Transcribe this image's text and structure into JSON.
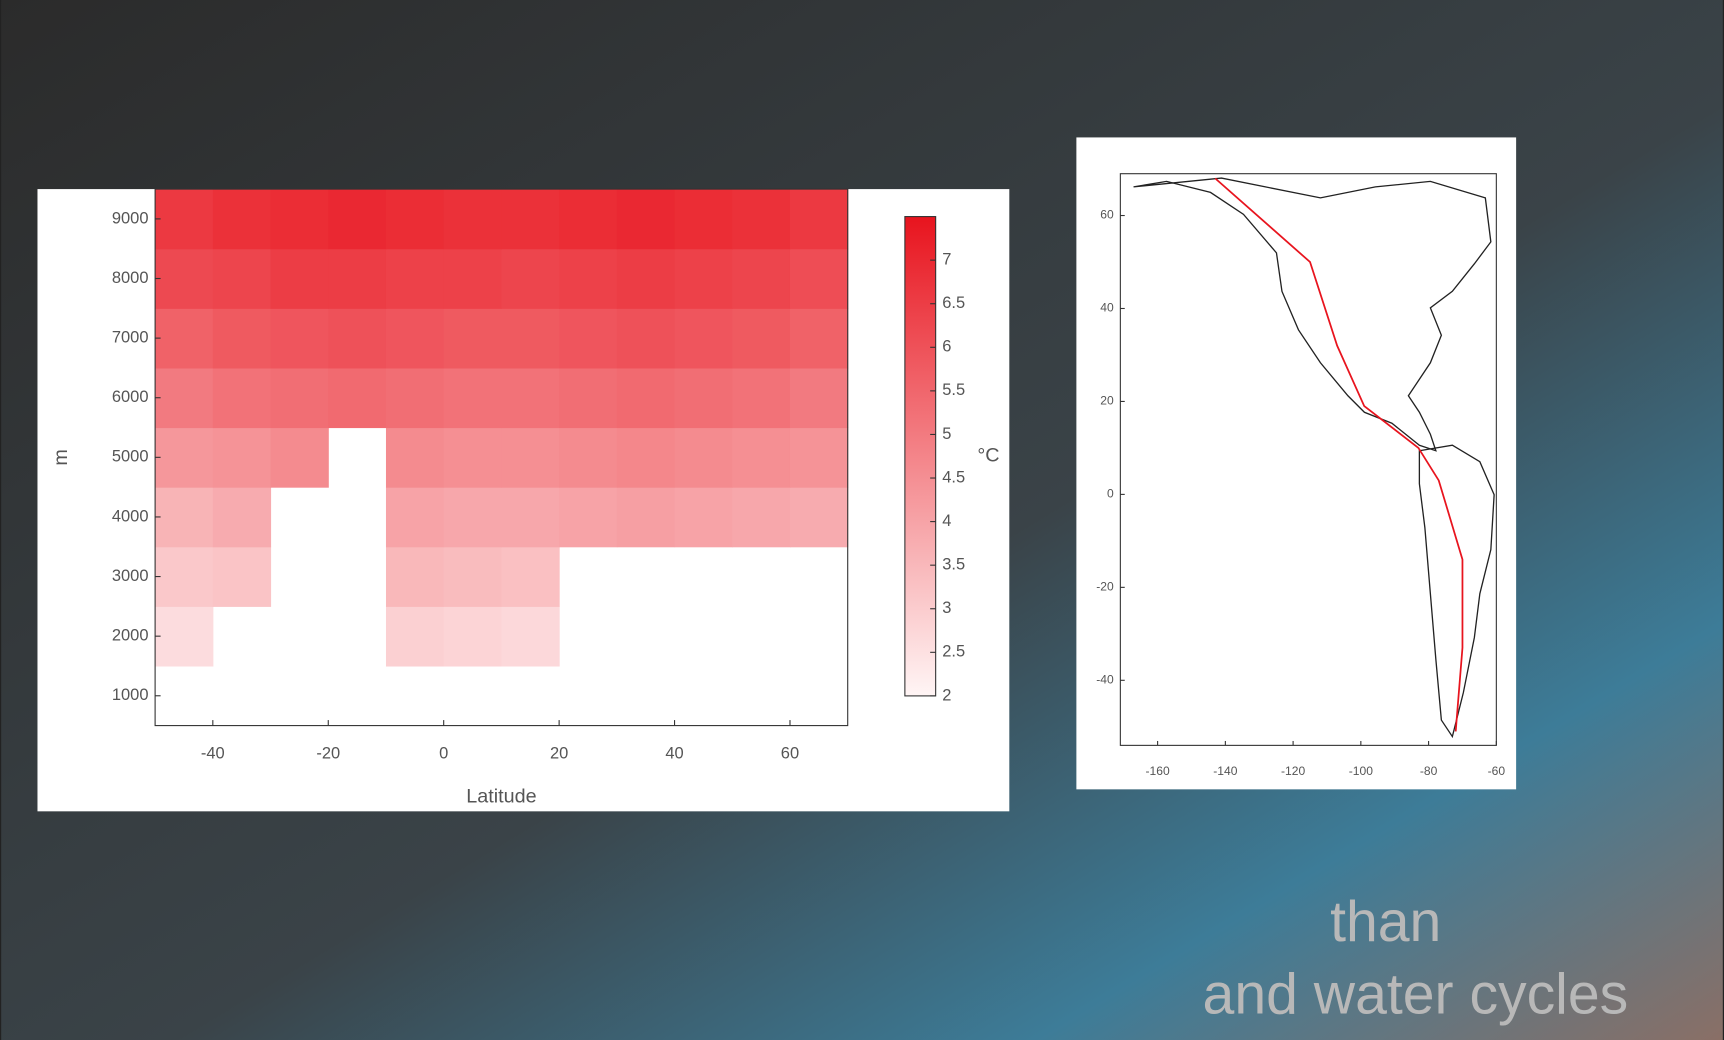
{
  "slide_text": [
    "than",
    "and water cycles"
  ],
  "chart_data": [
    {
      "type": "heatmap",
      "x_label": "Latitude",
      "y_label": "m",
      "xbins": [
        -50,
        -40,
        -30,
        -20,
        -10,
        0,
        10,
        20,
        30,
        40,
        50,
        60,
        70
      ],
      "ybins": [
        500,
        1500,
        2500,
        3500,
        4500,
        5500,
        6500,
        7500,
        8500,
        9500
      ],
      "values": [
        [
          null,
          null,
          null,
          null,
          null,
          null,
          null,
          null,
          null,
          null,
          null,
          null
        ],
        [
          2.6,
          null,
          null,
          null,
          2.9,
          2.8,
          2.7,
          null,
          null,
          null,
          null,
          null
        ],
        [
          3.1,
          3.2,
          null,
          null,
          3.5,
          3.4,
          3.3,
          null,
          null,
          null,
          null,
          null
        ],
        [
          3.6,
          3.8,
          null,
          null,
          4.0,
          3.9,
          3.9,
          4.0,
          4.1,
          4.0,
          3.9,
          3.8
        ],
        [
          4.3,
          4.4,
          4.6,
          null,
          4.6,
          4.5,
          4.5,
          4.6,
          4.7,
          4.6,
          4.5,
          4.4
        ],
        [
          5.0,
          5.2,
          5.3,
          5.4,
          5.3,
          5.2,
          5.2,
          5.3,
          5.4,
          5.3,
          5.2,
          5.0
        ],
        [
          5.6,
          5.8,
          5.9,
          6.0,
          5.9,
          5.8,
          5.8,
          5.9,
          6.0,
          5.9,
          5.8,
          5.6
        ],
        [
          6.2,
          6.3,
          6.5,
          6.5,
          6.4,
          6.4,
          6.3,
          6.4,
          6.5,
          6.4,
          6.3,
          6.1
        ],
        [
          6.6,
          6.8,
          6.9,
          7.0,
          6.9,
          6.8,
          6.8,
          6.9,
          7.0,
          6.9,
          6.8,
          6.6
        ]
      ],
      "xlim": [
        -50,
        70
      ],
      "ylim": [
        500,
        9500
      ],
      "xticks": [
        -40,
        -20,
        0,
        20,
        40,
        60
      ],
      "yticks": [
        1000,
        2000,
        3000,
        4000,
        5000,
        6000,
        7000,
        8000,
        9000
      ],
      "colorbar": {
        "label": "°C",
        "lim": [
          2,
          7.5
        ],
        "colors": [
          "#fff5f5",
          "#e8141e"
        ],
        "ticks": [
          2,
          2.5,
          3,
          3.5,
          4,
          4.5,
          5,
          5.5,
          6,
          6.5,
          7
        ]
      }
    },
    {
      "type": "map",
      "xlim": [
        -171,
        -60
      ],
      "ylim": [
        -54,
        69
      ],
      "xticks": [
        -160,
        -140,
        -120,
        -100,
        -80,
        -60
      ],
      "yticks": [
        -40,
        -20,
        0,
        20,
        40,
        60
      ],
      "series": [
        {
          "color": "#e8141e",
          "x": [
            -143,
            -115,
            -107,
            -99,
            -83,
            -77,
            -70,
            -70,
            -72
          ],
          "y": [
            68,
            50,
            32,
            19,
            10,
            3,
            -14,
            -33,
            -51
          ]
        }
      ]
    }
  ]
}
